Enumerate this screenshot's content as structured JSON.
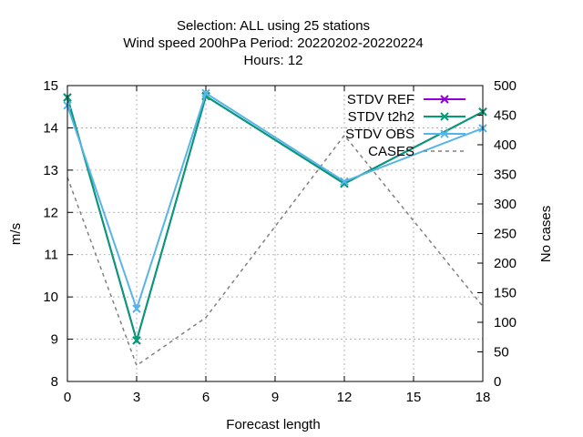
{
  "chart_data": {
    "type": "line",
    "title_lines": [
      "Selection: ALL using    25 stations",
      "Wind speed 200hPa   Period: 20220202-20220224",
      "Hours:  12"
    ],
    "xlabel": "Forecast length",
    "ylabel": "m/s",
    "y2label": "No cases",
    "x": [
      0,
      3,
      6,
      12,
      18
    ],
    "xlim": [
      0,
      18
    ],
    "xticks": [
      0,
      3,
      6,
      9,
      12,
      15,
      18
    ],
    "ylim": [
      8,
      15
    ],
    "yticks": [
      8,
      9,
      10,
      11,
      12,
      13,
      14,
      15
    ],
    "y2lim": [
      0,
      500
    ],
    "y2ticks": [
      0,
      50,
      100,
      150,
      200,
      250,
      300,
      350,
      400,
      450,
      500
    ],
    "grid": true,
    "legend_position": "top-right",
    "series": [
      {
        "name": "STDV REF",
        "axis": "left",
        "color": "#9400d3",
        "marker": "x",
        "dash": "",
        "values": [
          14.72,
          8.97,
          14.75,
          12.68,
          14.38
        ]
      },
      {
        "name": "STDV t2h2",
        "axis": "left",
        "color": "#009e73",
        "marker": "x",
        "dash": "",
        "values": [
          14.72,
          8.97,
          14.75,
          12.68,
          14.38
        ]
      },
      {
        "name": "STDV OBS",
        "axis": "left",
        "color": "#56b4e9",
        "marker": "x",
        "dash": "",
        "values": [
          14.53,
          9.72,
          14.82,
          12.73,
          13.99
        ]
      },
      {
        "name": "CASES",
        "axis": "right",
        "color": "#808080",
        "marker": "",
        "dash": "4,4",
        "values": [
          345,
          27,
          108,
          416,
          127
        ]
      }
    ]
  }
}
